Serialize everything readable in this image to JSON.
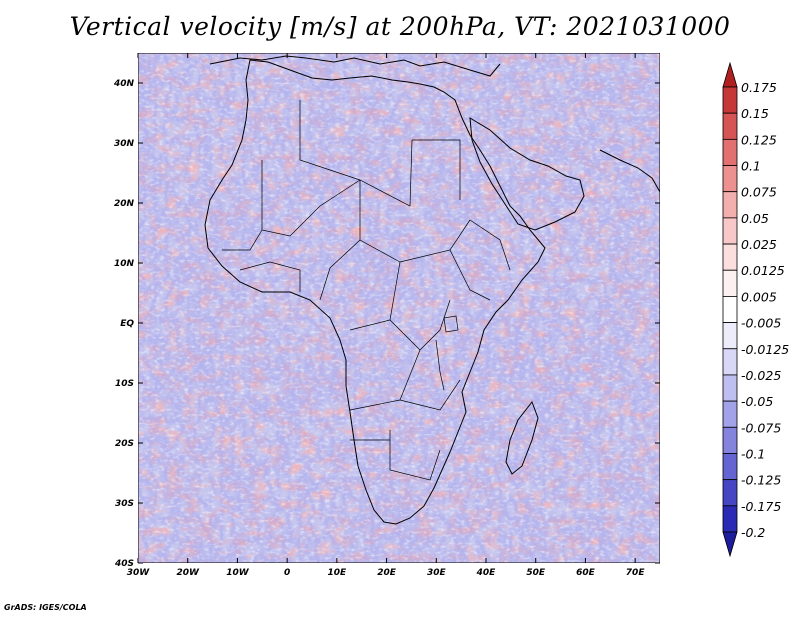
{
  "title": "Vertical velocity [m/s] at 200hPa, VT: 2021031000",
  "credit": "GrADS: IGES/COLA",
  "map": {
    "region": "Africa",
    "lon_range": [
      -30,
      75
    ],
    "lat_range": [
      -40,
      45
    ],
    "lat_ticks": [
      "40N",
      "30N",
      "20N",
      "10N",
      "EQ",
      "10S",
      "20S",
      "30S",
      "40S"
    ],
    "lon_ticks": [
      "30W",
      "20W",
      "10W",
      "0",
      "10E",
      "20E",
      "30E",
      "40E",
      "50E",
      "60E",
      "70E"
    ],
    "colors": {
      "background": "#c8c8f0",
      "coast": "#000000"
    }
  },
  "colorbar": {
    "labels": [
      "0.175",
      "0.15",
      "0.125",
      "0.1",
      "0.075",
      "0.05",
      "0.025",
      "0.0125",
      "0.005",
      "-0.005",
      "-0.0125",
      "-0.025",
      "-0.05",
      "-0.075",
      "-0.1",
      "-0.125",
      "-0.175",
      "-0.2"
    ],
    "colors": [
      "#b02020",
      "#c43838",
      "#d65454",
      "#e27070",
      "#ec9090",
      "#f3aeae",
      "#f8c8c8",
      "#fbdede",
      "#fdf0f0",
      "#ffffff",
      "#ececfb",
      "#d8d8f6",
      "#bebef0",
      "#a2a2e8",
      "#8484de",
      "#6464d2",
      "#4646c4",
      "#2a2ab4",
      "#1c1c9c"
    ]
  }
}
